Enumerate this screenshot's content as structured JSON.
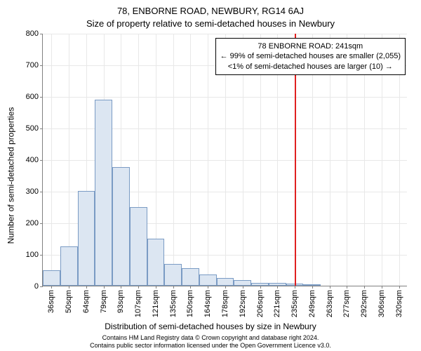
{
  "title_line1": "78, ENBORNE ROAD, NEWBURY, RG14 6AJ",
  "title_line2": "Size of property relative to semi-detached houses in Newbury",
  "y_axis_label": "Number of semi-detached properties",
  "x_axis_label": "Distribution of semi-detached houses by size in Newbury",
  "footer_line1": "Contains HM Land Registry data © Crown copyright and database right 2024.",
  "footer_line2": "Contains public sector information licensed under the Open Government Licence v3.0.",
  "annotation": {
    "line1": "78 ENBORNE ROAD: 241sqm",
    "line2": "← 99% of semi-detached houses are smaller (2,055)",
    "line3": "<1% of semi-detached houses are larger (10) →"
  },
  "chart": {
    "type": "histogram",
    "background_color": "#ffffff",
    "grid_color": "#e8e8e8",
    "axis_color": "#808080",
    "bar_fill": "#dce6f2",
    "bar_stroke": "#7a9bc4",
    "marker_color": "#e02020",
    "ylim": [
      0,
      800
    ],
    "ytick_step": 100,
    "x_categories": [
      "36sqm",
      "50sqm",
      "64sqm",
      "79sqm",
      "93sqm",
      "107sqm",
      "121sqm",
      "135sqm",
      "150sqm",
      "164sqm",
      "178sqm",
      "192sqm",
      "206sqm",
      "221sqm",
      "235sqm",
      "249sqm",
      "263sqm",
      "277sqm",
      "292sqm",
      "306sqm",
      "320sqm"
    ],
    "values": [
      50,
      125,
      300,
      590,
      375,
      250,
      150,
      70,
      55,
      35,
      25,
      18,
      10,
      8,
      6,
      5,
      0,
      0,
      0,
      0,
      0
    ],
    "marker_position_index": 14.5,
    "title_fontsize": 13,
    "label_fontsize": 12,
    "tick_fontsize": 11,
    "annotation_fontsize": 11,
    "footer_fontsize": 9
  }
}
